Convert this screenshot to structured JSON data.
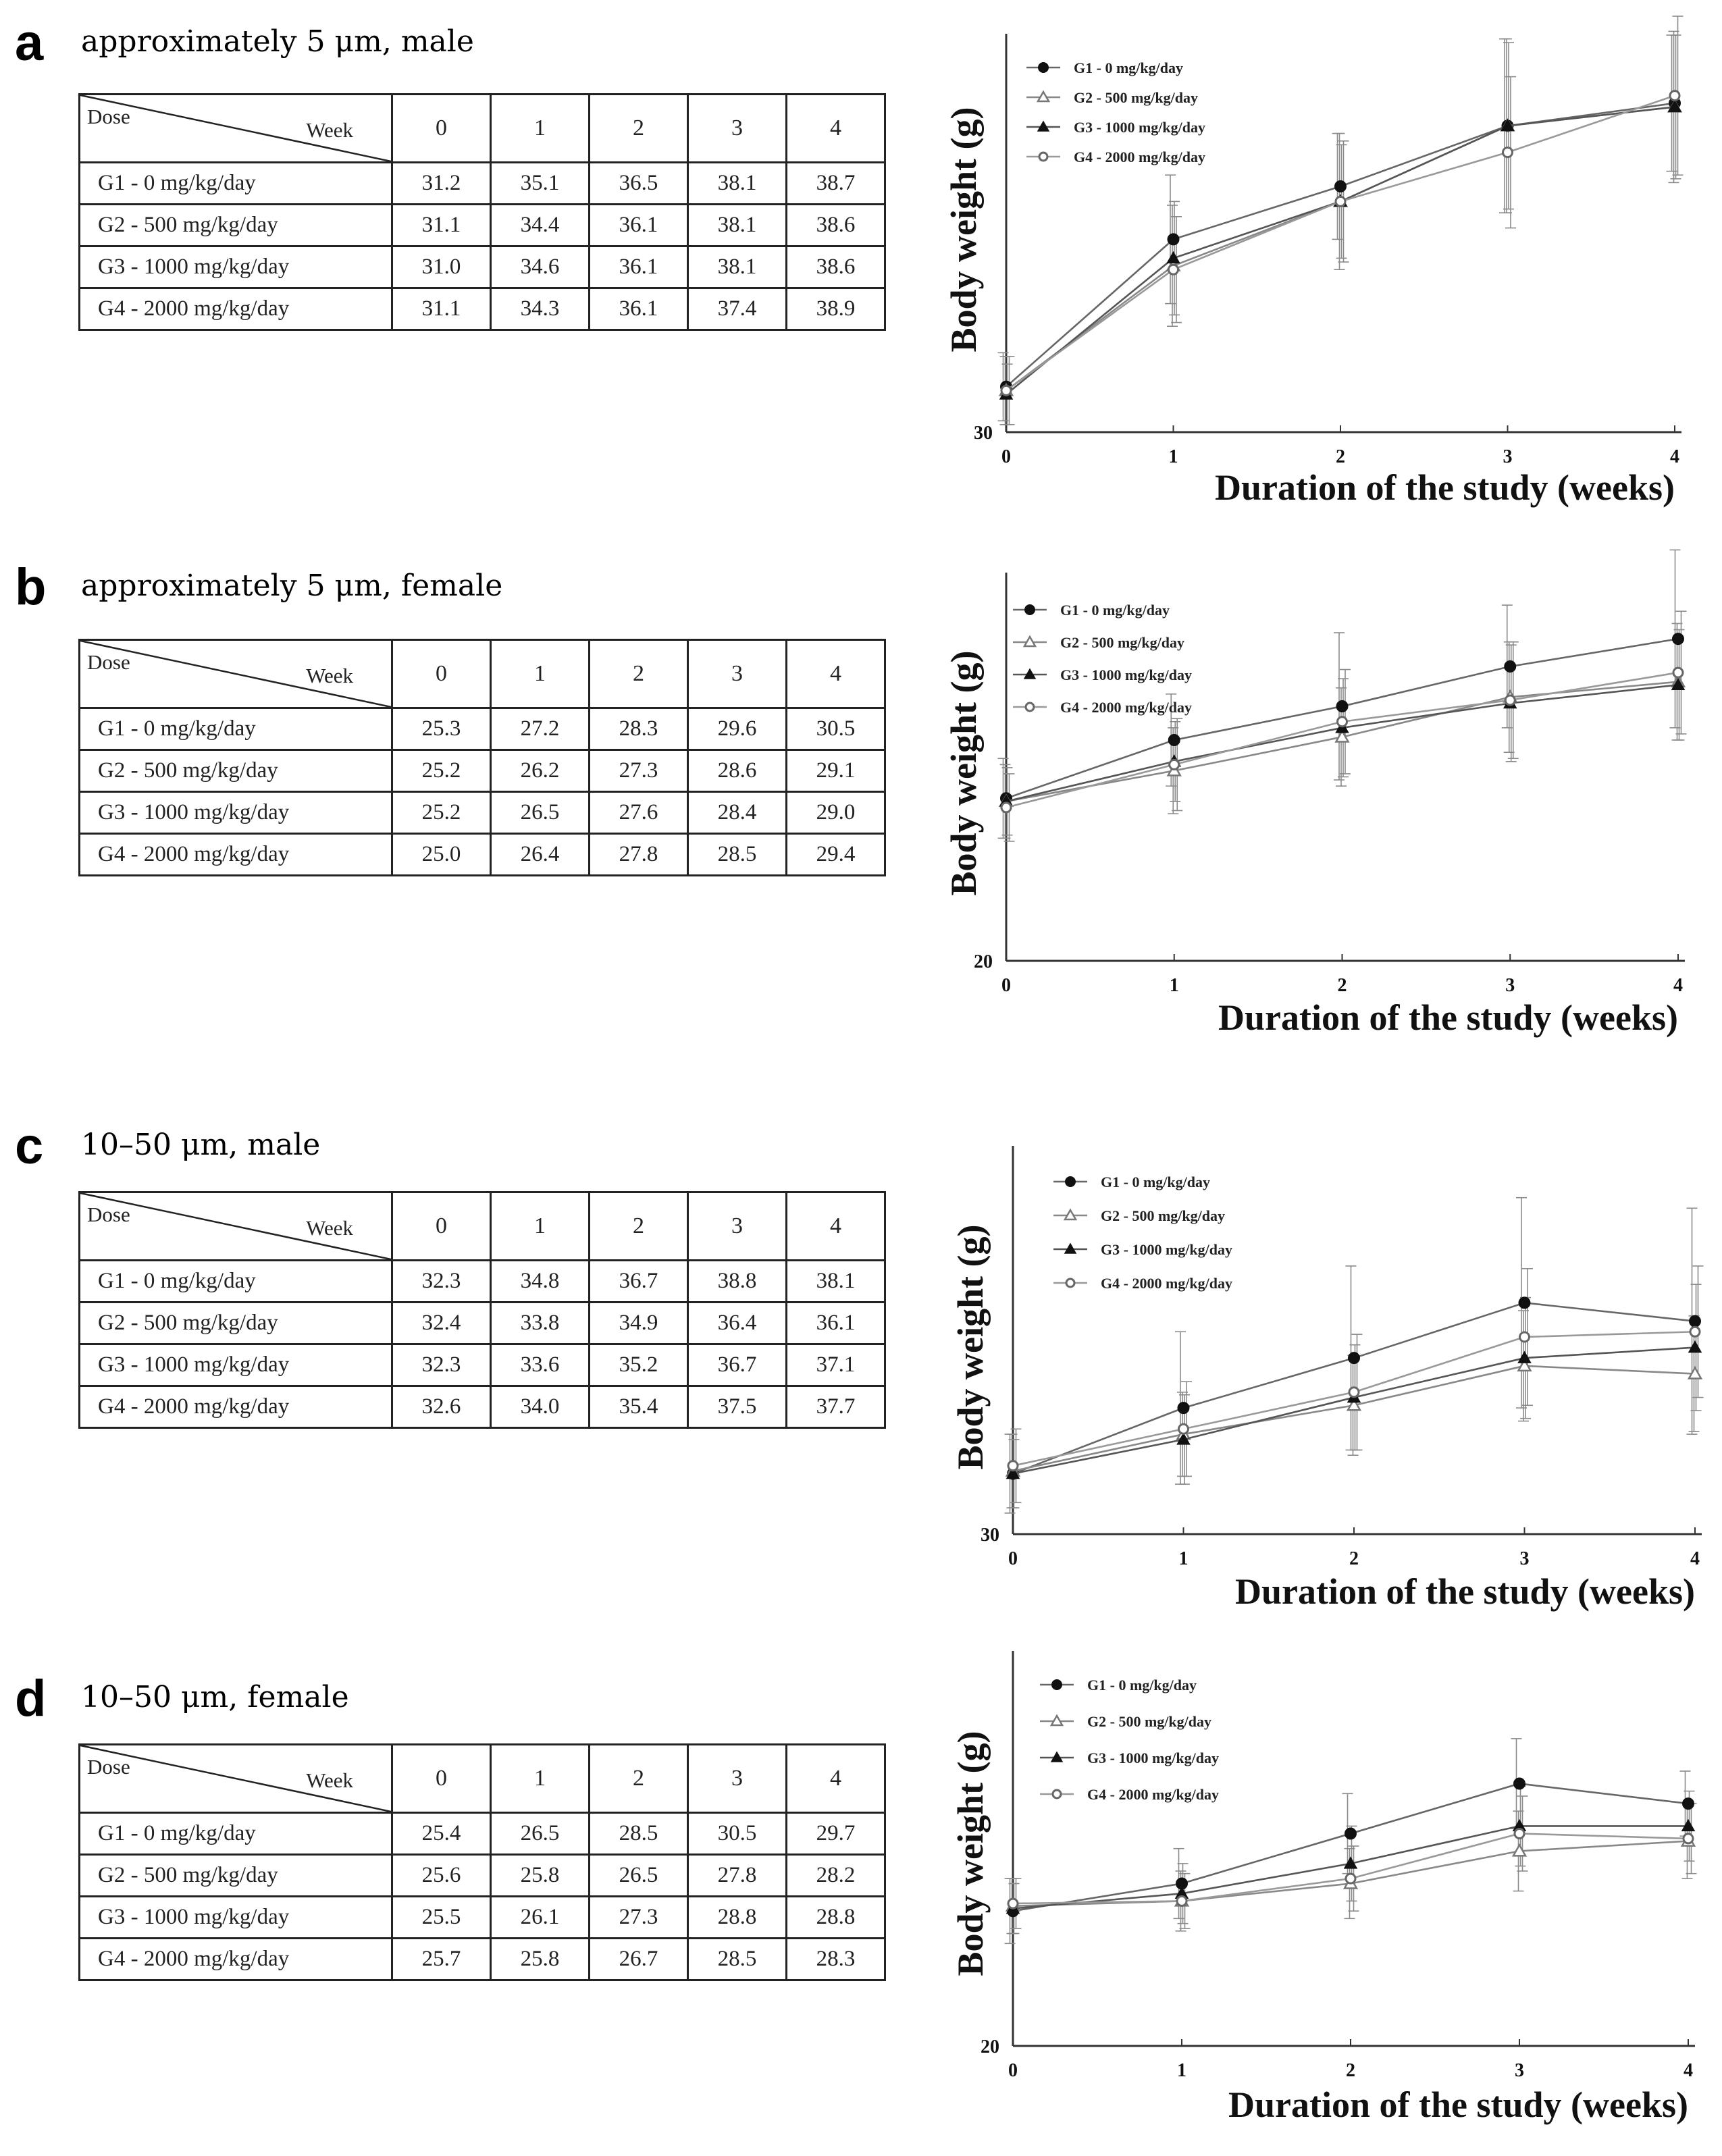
{
  "columns_header": {
    "dose": "Dose",
    "week": "Week"
  },
  "week_columns": [
    "0",
    "1",
    "2",
    "3",
    "4"
  ],
  "panels": [
    {
      "letter": "a",
      "title": "approximately 5 μm, male",
      "rows": [
        {
          "label": "G1 - 0 mg/kg/day",
          "values": [
            "31.2",
            "35.1",
            "36.5",
            "38.1",
            "38.7"
          ]
        },
        {
          "label": "G2 - 500 mg/kg/day",
          "values": [
            "31.1",
            "34.4",
            "36.1",
            "38.1",
            "38.6"
          ]
        },
        {
          "label": "G3 - 1000 mg/kg/day",
          "values": [
            "31.0",
            "34.6",
            "36.1",
            "38.1",
            "38.6"
          ]
        },
        {
          "label": "G4 - 2000 mg/kg/day",
          "values": [
            "31.1",
            "34.3",
            "36.1",
            "37.4",
            "38.9"
          ]
        }
      ]
    },
    {
      "letter": "b",
      "title": "approximately 5 μm, female",
      "rows": [
        {
          "label": "G1 - 0 mg/kg/day",
          "values": [
            "25.3",
            "27.2",
            "28.3",
            "29.6",
            "30.5"
          ]
        },
        {
          "label": "G2 - 500 mg/kg/day",
          "values": [
            "25.2",
            "26.2",
            "27.3",
            "28.6",
            "29.1"
          ]
        },
        {
          "label": "G3 - 1000 mg/kg/day",
          "values": [
            "25.2",
            "26.5",
            "27.6",
            "28.4",
            "29.0"
          ]
        },
        {
          "label": "G4 - 2000 mg/kg/day",
          "values": [
            "25.0",
            "26.4",
            "27.8",
            "28.5",
            "29.4"
          ]
        }
      ]
    },
    {
      "letter": "c",
      "title": "10–50 μm, male",
      "rows": [
        {
          "label": "G1 - 0 mg/kg/day",
          "values": [
            "32.3",
            "34.8",
            "36.7",
            "38.8",
            "38.1"
          ]
        },
        {
          "label": "G2 - 500 mg/kg/day",
          "values": [
            "32.4",
            "33.8",
            "34.9",
            "36.4",
            "36.1"
          ]
        },
        {
          "label": "G3 - 1000 mg/kg/day",
          "values": [
            "32.3",
            "33.6",
            "35.2",
            "36.7",
            "37.1"
          ]
        },
        {
          "label": "G4 - 2000 mg/kg/day",
          "values": [
            "32.6",
            "34.0",
            "35.4",
            "37.5",
            "37.7"
          ]
        }
      ]
    },
    {
      "letter": "d",
      "title": "10–50 μm, female",
      "rows": [
        {
          "label": "G1 - 0 mg/kg/day",
          "values": [
            "25.4",
            "26.5",
            "28.5",
            "30.5",
            "29.7"
          ]
        },
        {
          "label": "G2 - 500 mg/kg/day",
          "values": [
            "25.6",
            "25.8",
            "26.5",
            "27.8",
            "28.2"
          ]
        },
        {
          "label": "G3 - 1000 mg/kg/day",
          "values": [
            "25.5",
            "26.1",
            "27.3",
            "28.8",
            "28.8"
          ]
        },
        {
          "label": "G4 - 2000 mg/kg/day",
          "values": [
            "25.7",
            "25.8",
            "26.7",
            "28.5",
            "28.3"
          ]
        }
      ]
    }
  ],
  "chart_data": [
    {
      "type": "line",
      "panel": "a",
      "xlabel": "Duration of the study (weeks)",
      "ylabel": "Body weight (g)",
      "x": [
        0,
        1,
        2,
        3,
        4
      ],
      "x_ticks": [
        "0",
        "1",
        "2",
        "3",
        "4"
      ],
      "y_tick_label": "30",
      "ylim": [
        30,
        40
      ],
      "legend_position": "top-left",
      "series": [
        {
          "name": "G1 - 0 mg/kg/day",
          "marker": "filled-circle",
          "values": [
            31.2,
            35.1,
            36.5,
            38.1,
            38.7
          ],
          "sd": [
            0.9,
            1.7,
            1.4,
            2.3,
            1.8
          ]
        },
        {
          "name": "G2 - 500 mg/kg/day",
          "marker": "open-triangle",
          "values": [
            31.1,
            34.4,
            36.1,
            38.1,
            38.6
          ],
          "sd": [
            0.9,
            1.6,
            1.8,
            2.3,
            2.0
          ]
        },
        {
          "name": "G3 - 1000 mg/kg/day",
          "marker": "filled-triangle",
          "values": [
            31.0,
            34.6,
            36.1,
            38.1,
            38.6
          ],
          "sd": [
            0.8,
            1.5,
            1.5,
            2.2,
            1.9
          ]
        },
        {
          "name": "G4 - 2000 mg/kg/day",
          "marker": "open-circle",
          "values": [
            31.1,
            34.3,
            36.1,
            37.4,
            38.9
          ],
          "sd": [
            0.9,
            1.4,
            1.6,
            2.0,
            2.1
          ]
        }
      ]
    },
    {
      "type": "line",
      "panel": "b",
      "xlabel": "Duration of the study (weeks)",
      "ylabel": "Body weight (g)",
      "x": [
        0,
        1,
        2,
        3,
        4
      ],
      "x_ticks": [
        "0",
        "1",
        "2",
        "3",
        "4"
      ],
      "y_tick_label": "20",
      "ylim": [
        20,
        32
      ],
      "legend_position": "top-left",
      "series": [
        {
          "name": "G1 - 0 mg/kg/day",
          "marker": "filled-circle",
          "values": [
            25.3,
            27.2,
            28.3,
            29.6,
            30.5
          ],
          "sd": [
            1.3,
            1.5,
            2.4,
            2.0,
            2.9
          ]
        },
        {
          "name": "G2 - 500 mg/kg/day",
          "marker": "open-triangle",
          "values": [
            25.2,
            26.2,
            27.3,
            28.6,
            29.1
          ],
          "sd": [
            1.2,
            1.4,
            1.6,
            1.8,
            1.9
          ]
        },
        {
          "name": "G3 - 1000 mg/kg/day",
          "marker": "filled-triangle",
          "values": [
            25.2,
            26.5,
            27.6,
            28.4,
            29.0
          ],
          "sd": [
            1.1,
            1.3,
            1.6,
            1.9,
            1.8
          ]
        },
        {
          "name": "G4 - 2000 mg/kg/day",
          "marker": "open-circle",
          "values": [
            25.0,
            26.4,
            27.8,
            28.5,
            29.4
          ],
          "sd": [
            1.1,
            1.5,
            1.7,
            1.9,
            2.0
          ]
        }
      ]
    },
    {
      "type": "line",
      "panel": "c",
      "xlabel": "Duration of the study (weeks)",
      "ylabel": "Body weight (g)",
      "x": [
        0,
        1,
        2,
        3,
        4
      ],
      "x_ticks": [
        "0",
        "1",
        "2",
        "3",
        "4"
      ],
      "y_tick_label": "30",
      "ylim": [
        30,
        44
      ],
      "legend_position": "top-left",
      "series": [
        {
          "name": "G1 - 0 mg/kg/day",
          "marker": "filled-circle",
          "values": [
            32.3,
            34.8,
            36.7,
            38.8,
            38.1
          ],
          "sd": [
            1.5,
            2.9,
            3.5,
            4.0,
            4.3
          ]
        },
        {
          "name": "G2 - 500 mg/kg/day",
          "marker": "open-triangle",
          "values": [
            32.4,
            33.8,
            34.9,
            36.4,
            36.1
          ],
          "sd": [
            1.4,
            1.6,
            1.9,
            2.1,
            2.2
          ]
        },
        {
          "name": "G3 - 1000 mg/kg/day",
          "marker": "filled-triangle",
          "values": [
            32.3,
            33.6,
            35.2,
            36.7,
            37.1
          ],
          "sd": [
            1.3,
            1.7,
            2.0,
            2.3,
            2.4
          ]
        },
        {
          "name": "G4 - 2000 mg/kg/day",
          "marker": "open-circle",
          "values": [
            32.6,
            34.0,
            35.4,
            37.5,
            37.7
          ],
          "sd": [
            1.4,
            1.8,
            2.2,
            2.6,
            2.5
          ]
        }
      ]
    },
    {
      "type": "line",
      "panel": "d",
      "xlabel": "Duration of the study (weeks)",
      "ylabel": "Body weight (g)",
      "x": [
        0,
        1,
        2,
        3,
        4
      ],
      "x_ticks": [
        "0",
        "1",
        "2",
        "3",
        "4"
      ],
      "y_tick_label": "20",
      "ylim": [
        20,
        35
      ],
      "legend_position": "top-left",
      "series": [
        {
          "name": "G1 - 0 mg/kg/day",
          "marker": "filled-circle",
          "values": [
            25.4,
            26.5,
            28.5,
            30.5,
            29.7
          ],
          "sd": [
            1.3,
            1.4,
            1.6,
            1.8,
            1.3
          ]
        },
        {
          "name": "G2 - 500 mg/kg/day",
          "marker": "open-triangle",
          "values": [
            25.6,
            25.8,
            26.5,
            27.8,
            28.2
          ],
          "sd": [
            1.1,
            1.2,
            1.4,
            1.6,
            1.5
          ]
        },
        {
          "name": "G3 - 1000 mg/kg/day",
          "marker": "filled-triangle",
          "values": [
            25.5,
            26.1,
            27.3,
            28.8,
            28.8
          ],
          "sd": [
            1.0,
            1.2,
            1.5,
            1.6,
            1.4
          ]
        },
        {
          "name": "G4 - 2000 mg/kg/day",
          "marker": "open-circle",
          "values": [
            25.7,
            25.8,
            26.7,
            28.5,
            28.3
          ],
          "sd": [
            1.0,
            1.1,
            1.3,
            1.5,
            1.4
          ]
        }
      ]
    }
  ]
}
